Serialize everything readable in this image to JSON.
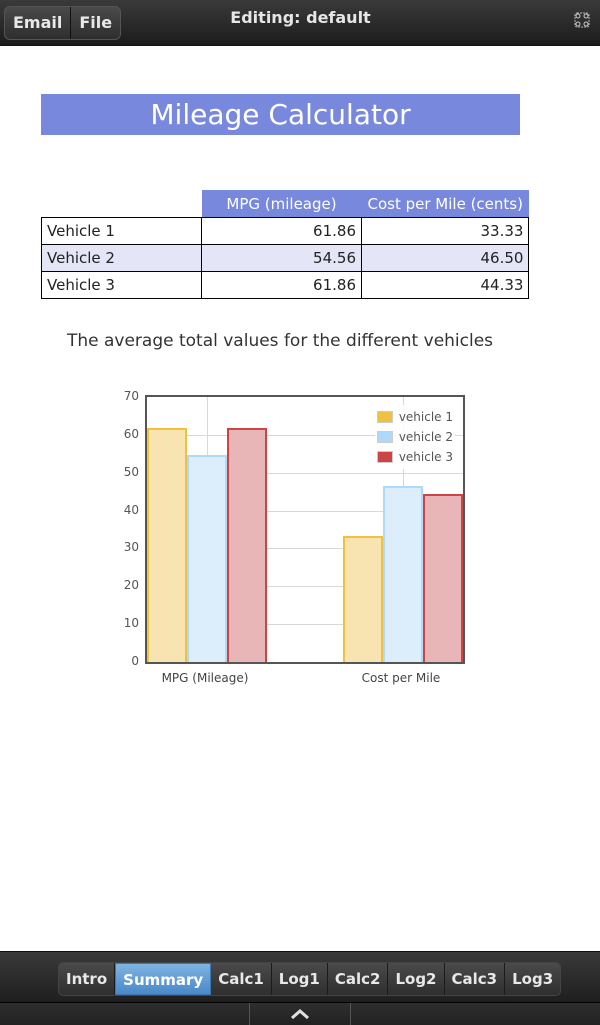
{
  "topbar": {
    "buttons": [
      {
        "label": "Email"
      },
      {
        "label": "File"
      }
    ],
    "title": "Editing: default",
    "fullscreen_icon": "fullscreen-icon"
  },
  "page": {
    "title": "Mileage Calculator",
    "table": {
      "headers": [
        "",
        "MPG (mileage)",
        "Cost per Mile (cents)"
      ],
      "rows": [
        {
          "vehicle": "Vehicle 1",
          "mpg": "61.86",
          "cost": "33.33"
        },
        {
          "vehicle": "Vehicle 2",
          "mpg": "54.56",
          "cost": "46.50"
        },
        {
          "vehicle": "Vehicle 3",
          "mpg": "61.86",
          "cost": "44.33"
        }
      ]
    },
    "chart_subtitle": "The average total values for the different vehicles"
  },
  "chart_data": {
    "type": "bar",
    "title": "The average total values for the different vehicles",
    "categories": [
      "MPG (Mileage)",
      "Cost per Mile"
    ],
    "series": [
      {
        "name": "vehicle 1",
        "values": [
          61.86,
          33.33
        ],
        "color": "#f0c040",
        "fill": "#f8e4b0"
      },
      {
        "name": "vehicle 2",
        "values": [
          54.56,
          46.5
        ],
        "color": "#b0d8f8",
        "fill": "#dcedfb"
      },
      {
        "name": "vehicle 3",
        "values": [
          61.86,
          44.33
        ],
        "color": "#cc4444",
        "fill": "#e8b6b6"
      }
    ],
    "yticks": [
      "0",
      "10",
      "20",
      "30",
      "40",
      "50",
      "60",
      "70"
    ],
    "ylim": [
      0,
      70
    ],
    "xlabel": "",
    "ylabel": "",
    "grid": true,
    "legend_position": "top-right"
  },
  "bottombar": {
    "tabs": [
      {
        "label": "Intro",
        "active": false
      },
      {
        "label": "Summary",
        "active": true
      },
      {
        "label": "Calc1",
        "active": false
      },
      {
        "label": "Log1",
        "active": false
      },
      {
        "label": "Calc2",
        "active": false
      },
      {
        "label": "Log2",
        "active": false
      },
      {
        "label": "Calc3",
        "active": false
      },
      {
        "label": "Log3",
        "active": false
      }
    ],
    "nav_icon": "chevron-up-icon"
  }
}
